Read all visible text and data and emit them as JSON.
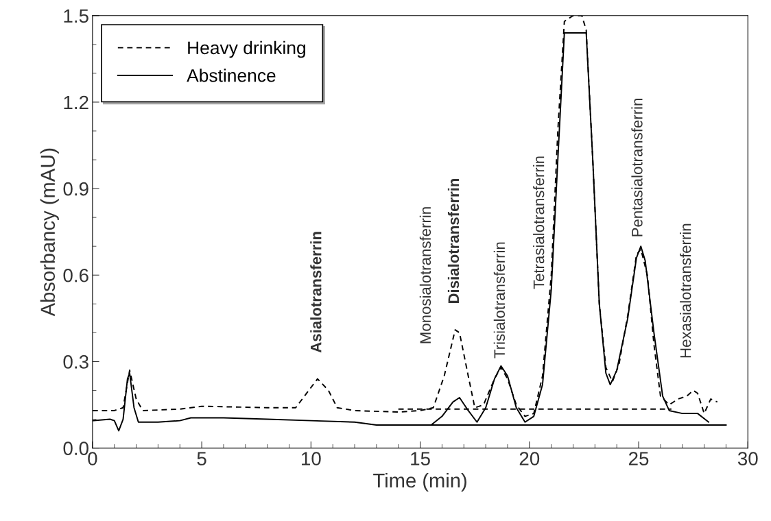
{
  "chart_data": {
    "type": "line",
    "xlabel": "Time (min)",
    "ylabel": "Absorbancy (mAU)",
    "xlim": [
      0,
      30
    ],
    "ylim": [
      0,
      1.5
    ],
    "xticks": [
      0,
      5,
      10,
      15,
      20,
      25,
      30
    ],
    "yticks": [
      {
        "value": 0,
        "label": "0.0"
      },
      {
        "value": 0.3,
        "label": "0.3"
      },
      {
        "value": 0.6,
        "label": "0.6"
      },
      {
        "value": 0.9,
        "label": "0.9"
      },
      {
        "value": 1.2,
        "label": "1.2"
      },
      {
        "value": 1.5,
        "label": "1.5"
      }
    ],
    "grid": false,
    "legend": "top left",
    "marker": "none",
    "series": [
      {
        "name": "Heavy drinking",
        "color": "#000000",
        "line_style": "dashed",
        "x": [
          0,
          1.0,
          1.4,
          1.7,
          2.0,
          2.3,
          4,
          5,
          8,
          9.3,
          9.8,
          10.3,
          10.8,
          11.2,
          12,
          14,
          15,
          15.6,
          16.1,
          16.6,
          16.8,
          17.2,
          17.5,
          17.9,
          18.4,
          18.7,
          19.0,
          19.4,
          19.8,
          20.2,
          20.6,
          21.0,
          21.3,
          21.6,
          22.0,
          22.4,
          22.6,
          22.9,
          23.2,
          23.5,
          23.8,
          24.1,
          24.5,
          24.9,
          25.1,
          25.4,
          25.7,
          26.0,
          26.4,
          26.8,
          27.2,
          27.5,
          27.7,
          28.0,
          28.3,
          28.6
        ],
        "values": [
          0.13,
          0.13,
          0.14,
          0.27,
          0.17,
          0.13,
          0.135,
          0.145,
          0.14,
          0.14,
          0.19,
          0.24,
          0.2,
          0.14,
          0.13,
          0.125,
          0.13,
          0.14,
          0.25,
          0.41,
          0.4,
          0.25,
          0.14,
          0.15,
          0.24,
          0.28,
          0.24,
          0.15,
          0.11,
          0.12,
          0.25,
          0.6,
          1.1,
          1.48,
          1.5,
          1.5,
          1.45,
          1.0,
          0.5,
          0.28,
          0.23,
          0.29,
          0.46,
          0.67,
          0.69,
          0.6,
          0.36,
          0.18,
          0.15,
          0.17,
          0.18,
          0.2,
          0.19,
          0.12,
          0.17,
          0.16
        ]
      },
      {
        "name": "Abstinence",
        "color": "#000000",
        "line_style": "solid",
        "x": [
          0,
          0.8,
          1.0,
          1.2,
          1.4,
          1.6,
          1.7,
          1.9,
          2.1,
          3,
          4,
          4.5,
          6,
          8,
          10,
          12,
          13,
          15,
          15.5,
          16,
          16.5,
          16.8,
          17.2,
          17.6,
          18,
          18.4,
          18.7,
          19,
          19.4,
          19.8,
          20.2,
          20.6,
          21,
          21.3,
          21.6,
          22.6,
          22.9,
          23.2,
          23.5,
          23.7,
          24.0,
          24.5,
          24.9,
          25.1,
          25.3,
          25.7,
          26.1,
          26.4,
          27,
          27.7,
          28.2
        ],
        "values": [
          0.095,
          0.1,
          0.095,
          0.06,
          0.1,
          0.24,
          0.26,
          0.14,
          0.09,
          0.09,
          0.095,
          0.105,
          0.105,
          0.1,
          0.095,
          0.09,
          0.08,
          0.08,
          0.08,
          0.11,
          0.16,
          0.175,
          0.13,
          0.09,
          0.14,
          0.24,
          0.285,
          0.25,
          0.14,
          0.09,
          0.11,
          0.22,
          0.55,
          1.0,
          1.44,
          1.44,
          1.0,
          0.5,
          0.26,
          0.22,
          0.27,
          0.45,
          0.66,
          0.7,
          0.65,
          0.4,
          0.18,
          0.13,
          0.12,
          0.12,
          0.09
        ]
      },
      {
        "color": "#000000",
        "line_style": "dashed",
        "x": [
          14,
          26.5
        ],
        "values": [
          0.135,
          0.135
        ]
      },
      {
        "color": "#000000",
        "line_style": "solid",
        "x": [
          15.5,
          29
        ],
        "values": [
          0.08,
          0.08
        ]
      }
    ],
    "annotations": [
      "Asialotransferrin",
      "Monosialotransferrin",
      "Disialotransferrin",
      "Trisialotransferrin",
      "Tetrasialotransferrin",
      "Pentasialotransferrin",
      "Hexasialotransferrin"
    ]
  }
}
